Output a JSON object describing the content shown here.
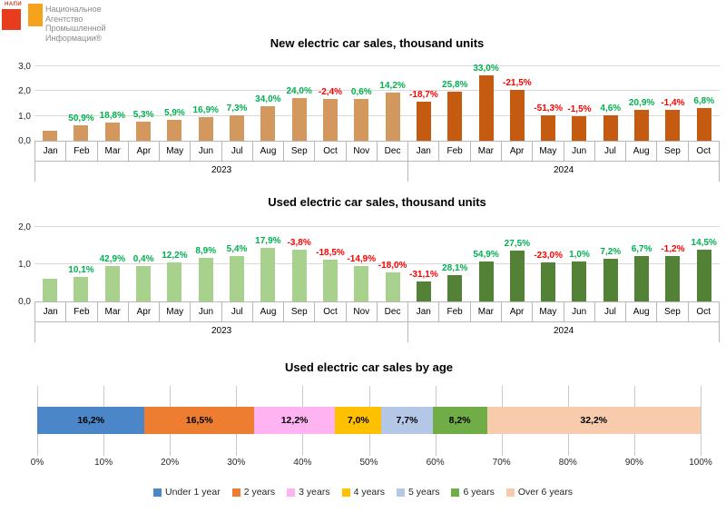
{
  "logo": {
    "small_text": "НАПИ",
    "lines": [
      "Национальное",
      "Агентство",
      "Промышленной",
      "Информации®"
    ]
  },
  "chart_data": [
    {
      "type": "bar",
      "title": "New electric car sales, thousand units",
      "x": [
        "Jan",
        "Feb",
        "Mar",
        "Apr",
        "May",
        "Jun",
        "Jul",
        "Aug",
        "Sep",
        "Oct",
        "Nov",
        "Dec",
        "Jan",
        "Feb",
        "Mar",
        "Apr",
        "May",
        "Jun",
        "Jul",
        "Aug",
        "Sep",
        "Oct"
      ],
      "year_groups": [
        {
          "label": "2023",
          "count": 12
        },
        {
          "label": "2024",
          "count": 10
        }
      ],
      "values": [
        0.41,
        0.62,
        0.74,
        0.77,
        0.82,
        0.96,
        1.03,
        1.38,
        1.71,
        1.67,
        1.68,
        1.92,
        1.56,
        1.96,
        2.61,
        2.05,
        1.0,
        0.98,
        1.03,
        1.24,
        1.22,
        1.31
      ],
      "pct_labels": [
        "",
        "50,9%",
        "18,8%",
        "5,3%",
        "5,9%",
        "16,9%",
        "7,3%",
        "34,0%",
        "24,0%",
        "-2,4%",
        "0,6%",
        "14,2%",
        "-18,7%",
        "25,8%",
        "33,0%",
        "-21,5%",
        "-51,3%",
        "-1,5%",
        "4,6%",
        "20,9%",
        "-1,4%",
        "6,8%"
      ],
      "ylim": [
        0,
        3
      ],
      "yticks": [
        "0,0",
        "1,0",
        "2,0",
        "3,0"
      ],
      "grid": true,
      "bar_colors": [
        "#d2985e",
        "#c55a11"
      ],
      "label_colors": {
        "positive": "#00b050",
        "negative": "#ff0000"
      }
    },
    {
      "type": "bar",
      "title": "Used electric car sales, thousand units",
      "x": [
        "Jan",
        "Feb",
        "Mar",
        "Apr",
        "May",
        "Jun",
        "Jul",
        "Aug",
        "Sep",
        "Oct",
        "Nov",
        "Dec",
        "Jan",
        "Feb",
        "Mar",
        "Apr",
        "May",
        "Jun",
        "Jul",
        "Aug",
        "Sep",
        "Oct"
      ],
      "year_groups": [
        {
          "label": "2023",
          "count": 12
        },
        {
          "label": "2024",
          "count": 10
        }
      ],
      "values": [
        0.6,
        0.66,
        0.94,
        0.95,
        1.06,
        1.16,
        1.22,
        1.44,
        1.38,
        1.13,
        0.96,
        0.79,
        0.54,
        0.7,
        1.08,
        1.37,
        1.06,
        1.07,
        1.14,
        1.22,
        1.21,
        1.38
      ],
      "pct_labels": [
        "",
        "10,1%",
        "42,9%",
        "0,4%",
        "12,2%",
        "8,9%",
        "5,4%",
        "17,9%",
        "-3,8%",
        "-18,5%",
        "-14,9%",
        "-18,0%",
        "-31,1%",
        "28,1%",
        "54,9%",
        "27,5%",
        "-23,0%",
        "1,0%",
        "7,2%",
        "6,7%",
        "-1,2%",
        "14,5%"
      ],
      "ylim": [
        0,
        2
      ],
      "yticks": [
        "0,0",
        "1,0",
        "2,0"
      ],
      "grid": true,
      "bar_colors": [
        "#a9d18e",
        "#538135"
      ],
      "label_colors": {
        "positive": "#00b050",
        "negative": "#ff0000"
      }
    },
    {
      "type": "bar",
      "subtype": "horizontal-stacked",
      "title": "Used electric car sales by age",
      "segments": [
        {
          "label": "Under 1 year",
          "value": 16.2,
          "display": "16,2%",
          "color": "#4a86c8"
        },
        {
          "label": "2 years",
          "value": 16.5,
          "display": "16,5%",
          "color": "#ed7d31"
        },
        {
          "label": "3 years",
          "value": 12.2,
          "display": "12,2%",
          "color": "#ffb3f0"
        },
        {
          "label": "4 years",
          "value": 7.0,
          "display": "7,0%",
          "color": "#ffc000"
        },
        {
          "label": "5 years",
          "value": 7.7,
          "display": "7,7%",
          "color": "#b4c7e7"
        },
        {
          "label": "6 years",
          "value": 8.2,
          "display": "8,2%",
          "color": "#70ad47"
        },
        {
          "label": "Over 6 years",
          "value": 32.2,
          "display": "32,2%",
          "color": "#f8cbad"
        }
      ],
      "xticks": [
        "0%",
        "10%",
        "20%",
        "30%",
        "40%",
        "50%",
        "60%",
        "70%",
        "80%",
        "90%",
        "100%"
      ],
      "xlim": [
        0,
        100
      ],
      "legend_position": "bottom"
    }
  ]
}
